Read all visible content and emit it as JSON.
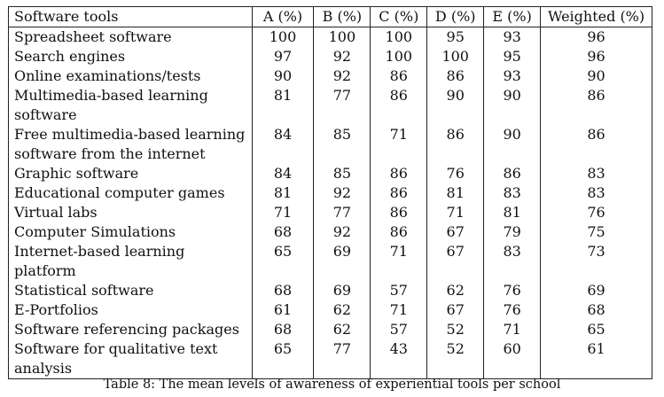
{
  "table": {
    "headers": [
      "Software tools",
      "A (%)",
      "B (%)",
      "C (%)",
      "D (%)",
      "E (%)",
      "Weighted (%)"
    ],
    "rows": [
      {
        "tool": "Spreadsheet software",
        "values": [
          "100",
          "100",
          "100",
          "95",
          "93",
          "96"
        ]
      },
      {
        "tool": "Search engines",
        "values": [
          "97",
          "92",
          "100",
          "100",
          "95",
          "96"
        ]
      },
      {
        "tool": "Online examinations/tests",
        "values": [
          "90",
          "92",
          "86",
          "86",
          "93",
          "90"
        ]
      },
      {
        "tool": "Multimedia-based learning software",
        "values": [
          "81",
          "77",
          "86",
          "90",
          "90",
          "86"
        ]
      },
      {
        "tool": "Free multimedia-based learning software from the internet",
        "values": [
          "84",
          "85",
          "71",
          "86",
          "90",
          "86"
        ]
      },
      {
        "tool": "Graphic software",
        "values": [
          "84",
          "85",
          "86",
          "76",
          "86",
          "83"
        ]
      },
      {
        "tool": "Educational computer games",
        "values": [
          "81",
          "92",
          "86",
          "81",
          "83",
          "83"
        ]
      },
      {
        "tool": "Virtual labs",
        "values": [
          "71",
          "77",
          "86",
          "71",
          "81",
          "76"
        ]
      },
      {
        "tool": "Computer Simulations",
        "values": [
          "68",
          "92",
          "86",
          "67",
          "79",
          "75"
        ]
      },
      {
        "tool": "Internet-based learning platform",
        "values": [
          "65",
          "69",
          "71",
          "67",
          "83",
          "73"
        ]
      },
      {
        "tool": "Statistical software",
        "values": [
          "68",
          "69",
          "57",
          "62",
          "76",
          "69"
        ]
      },
      {
        "tool": "E-Portfolios",
        "values": [
          "61",
          "62",
          "71",
          "67",
          "76",
          "68"
        ]
      },
      {
        "tool": "Software referencing packages",
        "values": [
          "68",
          "62",
          "57",
          "52",
          "71",
          "65"
        ]
      },
      {
        "tool": "Software for qualitative text analysis",
        "values": [
          "65",
          "77",
          "43",
          "52",
          "60",
          "61"
        ]
      }
    ]
  },
  "caption": "Table 8: The mean levels of awareness of experiential tools per school"
}
